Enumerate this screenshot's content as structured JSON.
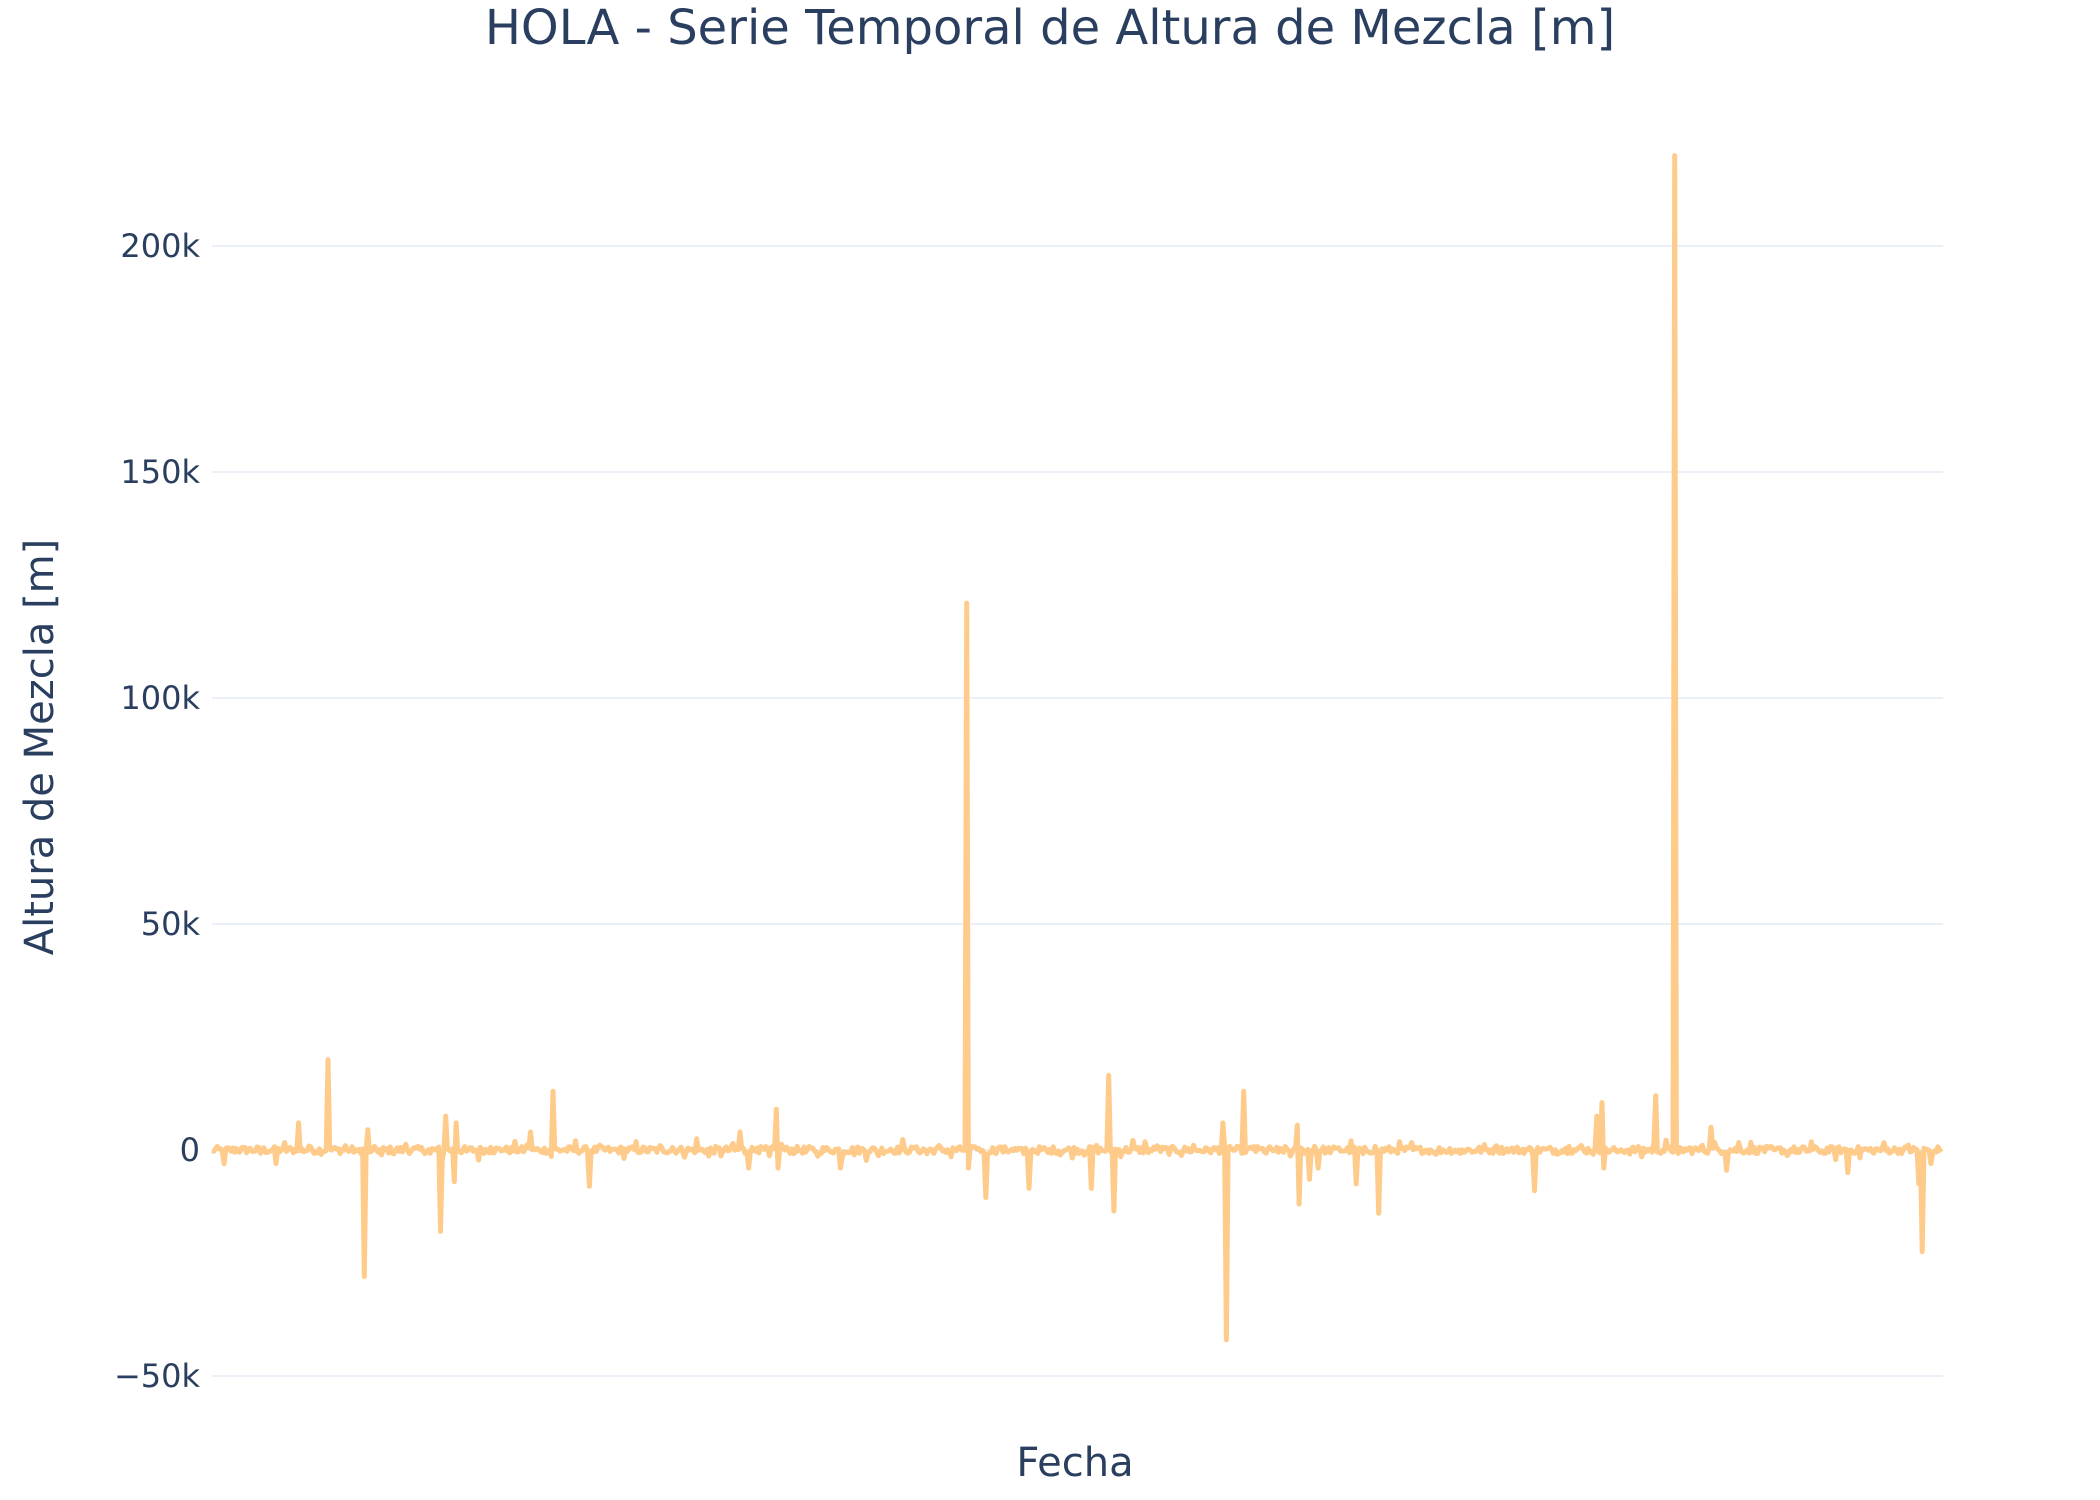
{
  "chart_data": {
    "type": "line",
    "title": "HOLA - Serie Temporal de Altura de Mezcla [m]",
    "xlabel": "Fecha",
    "ylabel": "Altura de Mezcla [m]",
    "ylim": [
      -55000,
      230000
    ],
    "yticks": [
      -50000,
      0,
      50000,
      100000,
      150000,
      200000
    ],
    "ytick_labels": [
      "−50k",
      "0",
      "50k",
      "100k",
      "150k",
      "200k"
    ],
    "grid": true,
    "legend": "none",
    "x_range": [
      0,
      1000
    ],
    "x_tick_labels": [],
    "series": [
      {
        "color": "#fecb8b",
        "spikes": [
          {
            "x": 67,
            "y": 20000
          },
          {
            "x": 88,
            "y": -28000
          },
          {
            "x": 90,
            "y": 4500
          },
          {
            "x": 50,
            "y": 6000
          },
          {
            "x": 132,
            "y": -18000
          },
          {
            "x": 135,
            "y": 7500
          },
          {
            "x": 140,
            "y": -7000
          },
          {
            "x": 141,
            "y": 6000
          },
          {
            "x": 197,
            "y": 13000
          },
          {
            "x": 218,
            "y": -8000
          },
          {
            "x": 326,
            "y": 9000
          },
          {
            "x": 327,
            "y": -4000
          },
          {
            "x": 363,
            "y": -4000
          },
          {
            "x": 436,
            "y": 121000
          },
          {
            "x": 437,
            "y": -4000
          },
          {
            "x": 447,
            "y": -10500
          },
          {
            "x": 472,
            "y": -8500
          },
          {
            "x": 518,
            "y": 16500
          },
          {
            "x": 508,
            "y": -8500
          },
          {
            "x": 521,
            "y": -13500
          },
          {
            "x": 586,
            "y": -42000
          },
          {
            "x": 584,
            "y": 6000
          },
          {
            "x": 596,
            "y": 13000
          },
          {
            "x": 628,
            "y": -12000
          },
          {
            "x": 627,
            "y": 5500
          },
          {
            "x": 634,
            "y": -6500
          },
          {
            "x": 639,
            "y": -4000
          },
          {
            "x": 661,
            "y": -7500
          },
          {
            "x": 674,
            "y": -14000
          },
          {
            "x": 764,
            "y": -9000
          },
          {
            "x": 803,
            "y": 10500
          },
          {
            "x": 800,
            "y": 7500
          },
          {
            "x": 804,
            "y": -4000
          },
          {
            "x": 834,
            "y": 12000
          },
          {
            "x": 845,
            "y": 220000
          },
          {
            "x": 866,
            "y": 5000
          },
          {
            "x": 875,
            "y": -4500
          },
          {
            "x": 945,
            "y": -5000
          },
          {
            "x": 986,
            "y": -7500
          },
          {
            "x": 988,
            "y": -22500
          },
          {
            "x": 993,
            "y": -3000
          },
          {
            "x": 7,
            "y": -3000
          },
          {
            "x": 37,
            "y": -3000
          },
          {
            "x": 310,
            "y": -4000
          },
          {
            "x": 305,
            "y": 4000
          },
          {
            "x": 184,
            "y": 4000
          },
          {
            "x": 280,
            "y": 2500
          }
        ]
      }
    ]
  }
}
